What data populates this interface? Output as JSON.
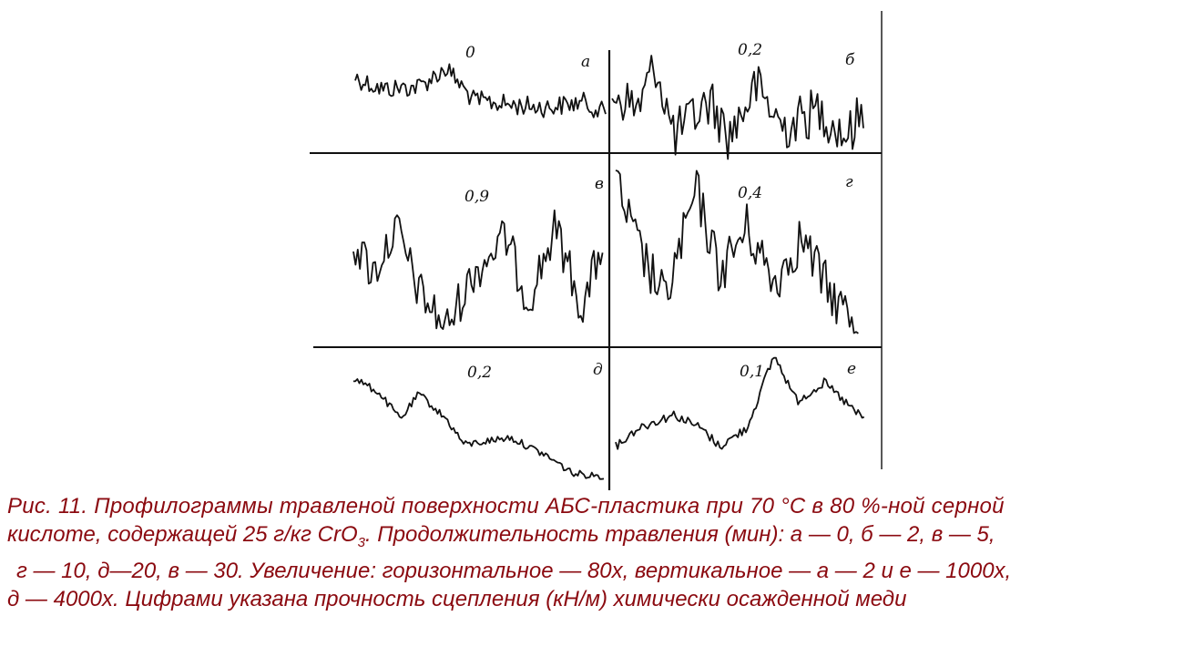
{
  "panels": [
    {
      "id": "a",
      "letter": "а",
      "value": "0"
    },
    {
      "id": "b",
      "letter": "б",
      "value": "0,2"
    },
    {
      "id": "v",
      "letter": "в",
      "value": "0,9"
    },
    {
      "id": "g",
      "letter": "г",
      "value": "0,4"
    },
    {
      "id": "d",
      "letter": "д",
      "value": "0,2"
    },
    {
      "id": "e",
      "letter": "е",
      "value": "0,1"
    }
  ],
  "caption": {
    "line1": "Рис. 11. Профилограммы травленой поверхности АБС-пластика при 70 °С в 80 %-ной серной",
    "line2_before": "кислоте, содержащей 25 г/кг CrO",
    "line2_sub": "3",
    "line2_after": ". Продолжительность травления (мин): а — 0, б — 2, в — 5,",
    "line3": "г — 10, д—20, в — 30. Увеличение: горизонтальное — 80х, вертикальное — а — 2 и е — 1000х,",
    "line4": "д — 4000х. Цифрами указана прочность сцепления (кН/м) химически осажденной меди"
  },
  "colors": {
    "caption": "#8b0a10",
    "lines": "#111111"
  }
}
